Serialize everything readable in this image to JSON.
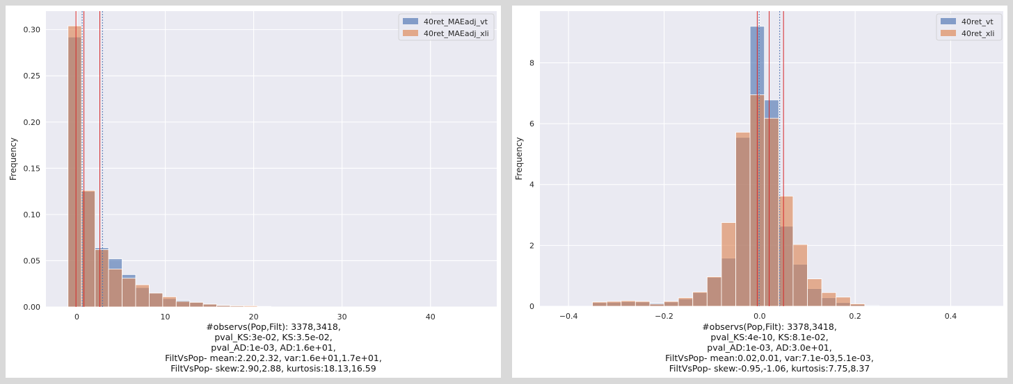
{
  "colors": {
    "background": "#eaeaf2",
    "grid": "#ffffff",
    "blue": "#4c72b0",
    "orange": "#dd8452",
    "line_red": "#d62728"
  },
  "chart_data": [
    {
      "type": "bar",
      "subtype": "overlaid_histogram",
      "ylabel": "Frequency",
      "xlabel": "",
      "xlim": [
        -3.5,
        47.5
      ],
      "ylim": [
        0,
        0.32
      ],
      "xticks": [
        "0",
        "10",
        "20",
        "30",
        "40"
      ],
      "yticks": [
        "0.00",
        "0.05",
        "0.10",
        "0.15",
        "0.20",
        "0.25",
        "0.30"
      ],
      "grid": true,
      "legend_position": "top-right",
      "bin_edges": [
        -1.0,
        0.53,
        2.06,
        3.59,
        5.12,
        6.65,
        8.18,
        9.71,
        11.24,
        12.77,
        14.3,
        15.83,
        17.36,
        18.89,
        20.42,
        21.95
      ],
      "series": [
        {
          "name": "40ret_MAEadj_vt",
          "color": "blue",
          "values": [
            0.292,
            0.125,
            0.064,
            0.052,
            0.035,
            0.021,
            0.015,
            0.009,
            0.007,
            0.005,
            0.003,
            0.002,
            0.001,
            0.0005,
            0.0002
          ]
        },
        {
          "name": "40ret_MAEadj_xli",
          "color": "orange",
          "values": [
            0.304,
            0.126,
            0.062,
            0.041,
            0.031,
            0.024,
            0.015,
            0.011,
            0.006,
            0.005,
            0.003,
            0.0015,
            0.0012,
            0.0012,
            0.0006
          ]
        }
      ],
      "vlines": [
        {
          "x": -0.1,
          "color": "line_red",
          "style": "solid"
        },
        {
          "x": 0.6,
          "color": "blue",
          "style": "dotted"
        },
        {
          "x": 0.8,
          "color": "line_red",
          "style": "solid"
        },
        {
          "x": 2.6,
          "color": "line_red",
          "style": "solid"
        },
        {
          "x": 2.9,
          "color": "blue",
          "style": "dotted"
        }
      ],
      "caption": [
        "#observs(Pop,Filt): 3378,3418,",
        "pval_KS:3e-02, KS:3.5e-02,",
        "pval_AD:1e-03, AD:1.6e+01,",
        "FiltVsPop- mean:2.20,2.32, var:1.6e+01,1.7e+01,",
        "FiltVsPop- skew:2.90,2.88, kurtosis:18.13,16.59"
      ]
    },
    {
      "type": "bar",
      "subtype": "overlaid_histogram",
      "ylabel": "Frequency",
      "xlabel": "",
      "xlim": [
        -0.46,
        0.51
      ],
      "ylim": [
        0,
        9.7
      ],
      "xticks": [
        "−0.4",
        "−0.2",
        "0.0",
        "0.2",
        "0.4"
      ],
      "yticks": [
        "0",
        "2",
        "4",
        "6",
        "8"
      ],
      "grid": true,
      "legend_position": "top-right",
      "bin_edges": [
        -0.35,
        -0.32,
        -0.29,
        -0.26,
        -0.23,
        -0.2,
        -0.17,
        -0.14,
        -0.11,
        -0.08,
        -0.05,
        -0.02,
        0.01,
        0.04,
        0.07,
        0.1,
        0.13,
        0.16,
        0.19,
        0.22,
        0.25
      ],
      "series": [
        {
          "name": "40ret_vt",
          "color": "blue",
          "values": [
            0.12,
            0.13,
            0.15,
            0.14,
            0.1,
            0.14,
            0.24,
            0.45,
            0.95,
            1.58,
            5.55,
            9.2,
            6.78,
            2.63,
            1.38,
            0.58,
            0.28,
            0.12,
            0.06,
            0.02
          ]
        },
        {
          "name": "40ret_xli",
          "color": "orange",
          "values": [
            0.14,
            0.16,
            0.18,
            0.16,
            0.07,
            0.16,
            0.28,
            0.47,
            0.97,
            2.75,
            5.72,
            6.95,
            6.18,
            3.62,
            2.03,
            0.9,
            0.45,
            0.3,
            0.08,
            0.0
          ]
        }
      ],
      "vlines": [
        {
          "x": -0.005,
          "color": "line_red",
          "style": "solid"
        },
        {
          "x": -0.001,
          "color": "blue",
          "style": "dotted"
        },
        {
          "x": 0.02,
          "color": "line_red",
          "style": "solid"
        },
        {
          "x": 0.042,
          "color": "blue",
          "style": "dotted"
        },
        {
          "x": 0.05,
          "color": "line_red",
          "style": "solid"
        }
      ],
      "caption": [
        "#observs(Pop,Filt): 3378,3418,",
        "pval_KS:4e-10, KS:8.1e-02,",
        "pval_AD:1e-03, AD:3.0e+01,",
        "FiltVsPop- mean:0.02,0.01, var:7.1e-03,5.1e-03,",
        "FiltVsPop- skew:-0.95,-1.06, kurtosis:7.75,8.37"
      ]
    }
  ]
}
